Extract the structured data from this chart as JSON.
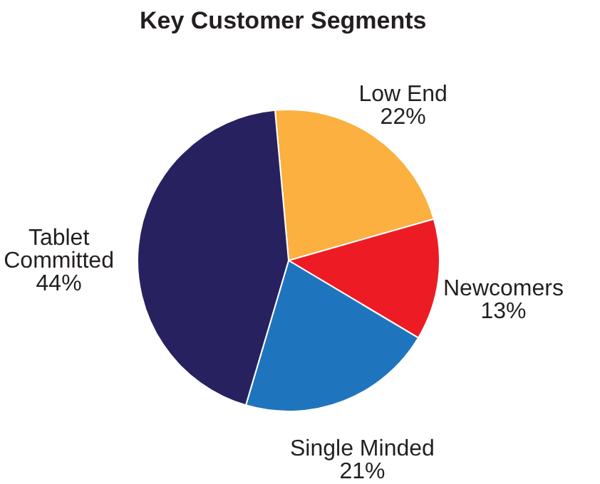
{
  "chart_data": {
    "type": "pie",
    "title": "Key Customer Segments",
    "categories": [
      "Low End",
      "Newcomers",
      "Single Minded",
      "Tablet Committed"
    ],
    "values": [
      22,
      13,
      21,
      44
    ],
    "colors": [
      "#fbb03f",
      "#ed1c24",
      "#1f75bd",
      "#28215f"
    ],
    "value_labels": [
      "22%",
      "13%",
      "21%",
      "44%"
    ]
  }
}
